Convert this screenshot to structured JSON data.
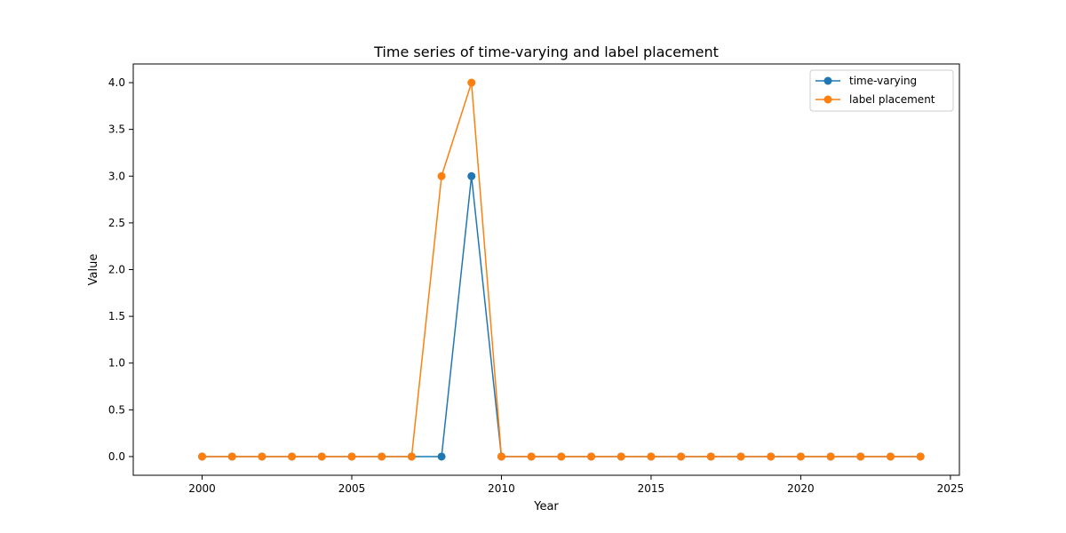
{
  "chart_data": {
    "type": "line",
    "title": "Time series of time-varying and label placement",
    "xlabel": "Year",
    "ylabel": "Value",
    "x": [
      2000,
      2001,
      2002,
      2003,
      2004,
      2005,
      2006,
      2007,
      2008,
      2009,
      2010,
      2011,
      2012,
      2013,
      2014,
      2015,
      2016,
      2017,
      2018,
      2019,
      2020,
      2021,
      2022,
      2023,
      2024
    ],
    "series": [
      {
        "name": "time-varying",
        "color": "#1f77b4",
        "marker": "circle",
        "values": [
          0,
          0,
          0,
          0,
          0,
          0,
          0,
          0,
          0,
          3,
          0,
          0,
          0,
          0,
          0,
          0,
          0,
          0,
          0,
          0,
          0,
          0,
          0,
          0,
          0
        ]
      },
      {
        "name": "label placement",
        "color": "#ff7f0e",
        "marker": "circle",
        "values": [
          0,
          0,
          0,
          0,
          0,
          0,
          0,
          0,
          3,
          4,
          0,
          0,
          0,
          0,
          0,
          0,
          0,
          0,
          0,
          0,
          0,
          0,
          0,
          0,
          0
        ]
      }
    ],
    "xlim": [
      1997.7,
      2025.3
    ],
    "ylim": [
      -0.2,
      4.2
    ],
    "xticks": [
      2000,
      2005,
      2010,
      2015,
      2020,
      2025
    ],
    "xtick_labels": [
      "2000",
      "2005",
      "2010",
      "2015",
      "2020",
      "2025"
    ],
    "yticks": [
      0,
      0.5,
      1,
      1.5,
      2,
      2.5,
      3,
      3.5,
      4
    ],
    "ytick_labels": [
      "0.0",
      "0.5",
      "1.0",
      "1.5",
      "2.0",
      "2.5",
      "3.0",
      "3.5",
      "4.0"
    ],
    "grid": false,
    "legend_position": "top-right"
  }
}
